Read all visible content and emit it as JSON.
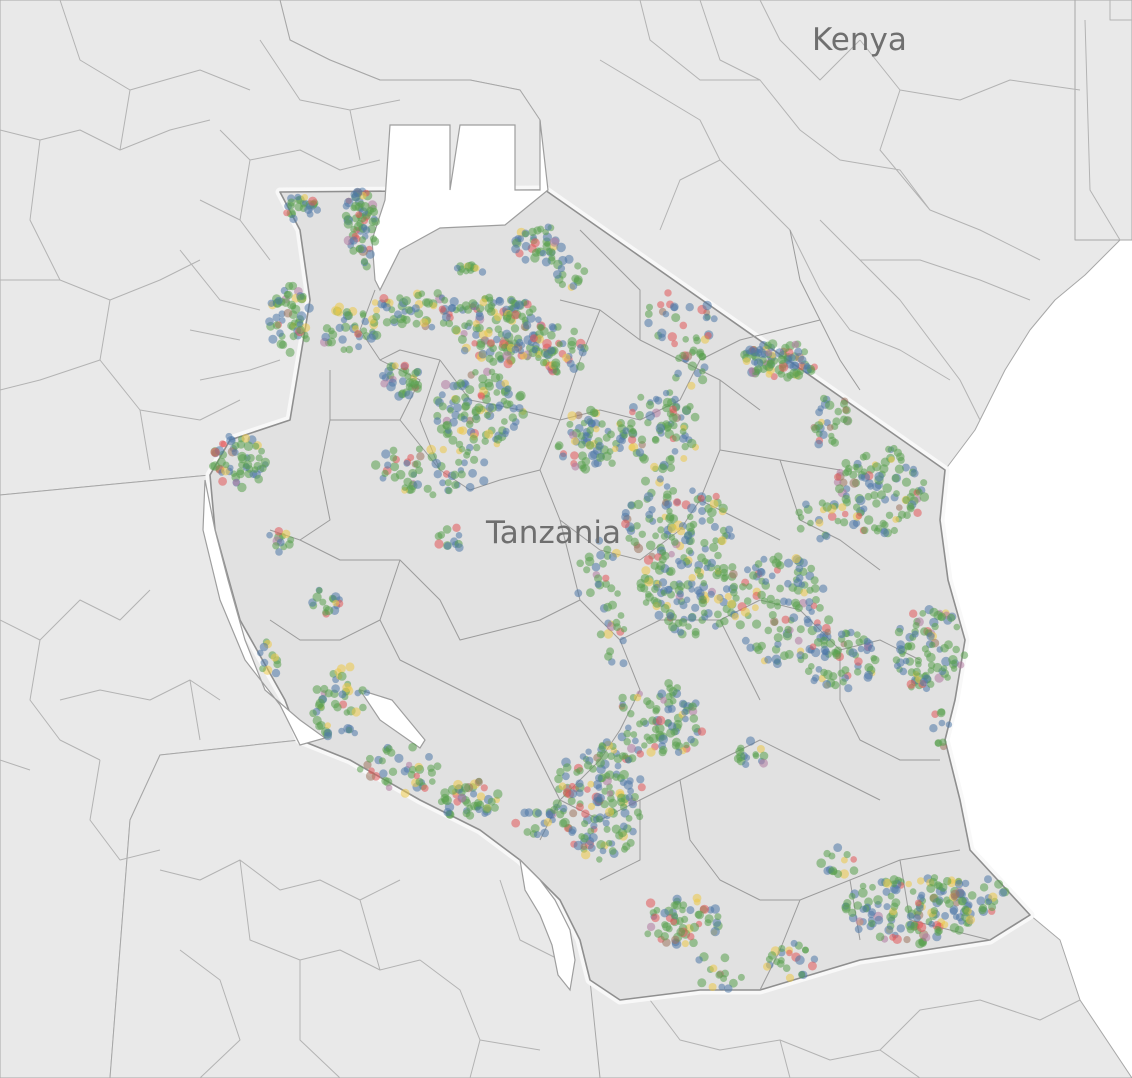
{
  "map": {
    "labels": {
      "kenya": "Kenya",
      "tanzania": "Tanzania"
    },
    "point_palette": [
      "#4e79a7",
      "#59a14f",
      "#edc948",
      "#e15759",
      "#b07aa1",
      "#9c755f"
    ],
    "point_opacity": 0.55
  }
}
